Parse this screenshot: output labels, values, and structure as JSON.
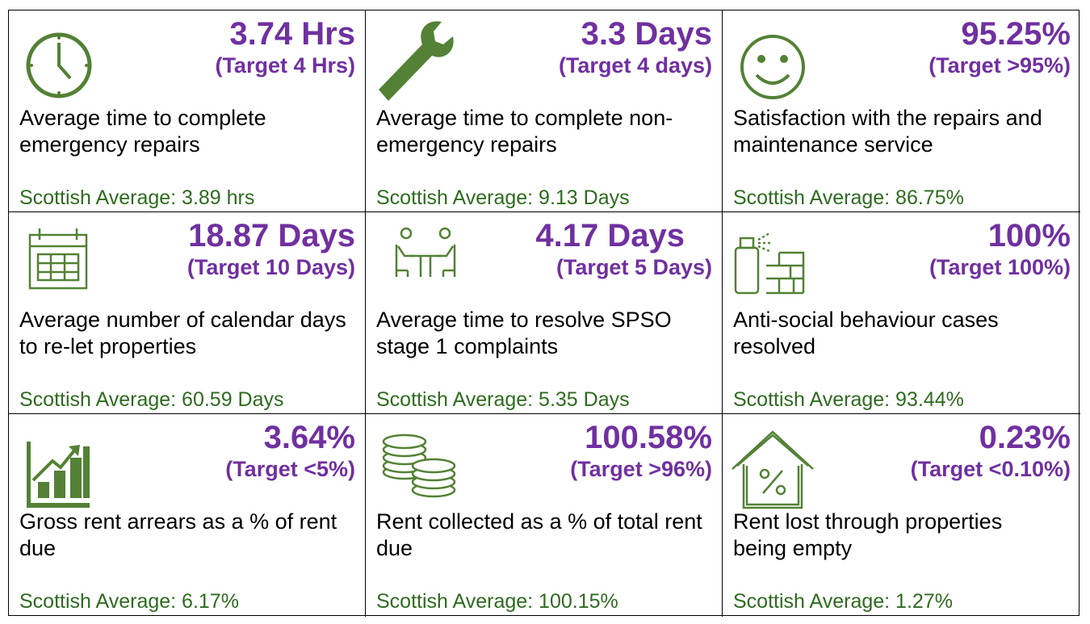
{
  "tiles": [
    {
      "value": "3.74 Hrs",
      "target": "(Target 4 Hrs)",
      "description": "Average time to complete emergency repairs",
      "scottish_average": "Scottish Average: 3.89 hrs"
    },
    {
      "value": "3.3 Days",
      "target": "(Target 4 days)",
      "description": "Average time to complete non-emergency repairs",
      "scottish_average": "Scottish Average: 9.13 Days"
    },
    {
      "value": "95.25%",
      "target": "(Target >95%)",
      "description": "Satisfaction with the repairs and maintenance service",
      "scottish_average": "Scottish Average: 86.75%"
    },
    {
      "value": "18.87 Days",
      "target": "(Target 10 Days)",
      "description": "Average number of calendar days to re-let properties",
      "scottish_average": "Scottish Average: 60.59 Days"
    },
    {
      "value": "4.17 Days",
      "target": "(Target 5 Days)",
      "description": "Average time to resolve SPSO stage 1 complaints",
      "scottish_average": "Scottish Average: 5.35 Days"
    },
    {
      "value": "100%",
      "target": "(Target 100%)",
      "description": "Anti-social behaviour cases resolved",
      "scottish_average": "Scottish Average: 93.44%"
    },
    {
      "value": "3.64%",
      "target": "(Target <5%)",
      "description": "Gross rent arrears as a % of rent due",
      "scottish_average": "Scottish Average: 6.17%"
    },
    {
      "value": "100.58%",
      "target": "(Target >96%)",
      "description": "Rent collected as a % of total rent due",
      "scottish_average": "Scottish Average: 100.15%"
    },
    {
      "value": "0.23%",
      "target": "(Target <0.10%)",
      "description": "Rent lost through properties being empty",
      "scottish_average": "Scottish Average: 1.27%"
    }
  ]
}
